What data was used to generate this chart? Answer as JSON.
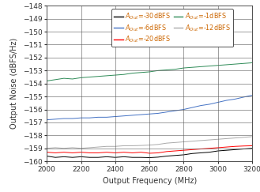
{
  "title": "",
  "xlabel": "Output Frequency (MHz)",
  "ylabel": "Output Noise (dBFS/Hz)",
  "xlim": [
    2000,
    3200
  ],
  "ylim": [
    -160,
    -148
  ],
  "yticks": [
    -160,
    -159,
    -158,
    -157,
    -156,
    -155,
    -154,
    -153,
    -152,
    -151,
    -150,
    -149,
    -148
  ],
  "xticks": [
    2000,
    2200,
    2400,
    2600,
    2800,
    3000,
    3200
  ],
  "series": [
    {
      "label": "=-30dBFS",
      "color": "#000000",
      "x": [
        2000,
        2050,
        2100,
        2150,
        2200,
        2250,
        2300,
        2350,
        2400,
        2450,
        2500,
        2550,
        2600,
        2650,
        2700,
        2750,
        2800,
        2850,
        2900,
        2950,
        3000,
        3050,
        3100,
        3150,
        3200
      ],
      "y": [
        -159.6,
        -159.7,
        -159.65,
        -159.7,
        -159.65,
        -159.7,
        -159.7,
        -159.65,
        -159.7,
        -159.65,
        -159.7,
        -159.7,
        -159.72,
        -159.68,
        -159.6,
        -159.55,
        -159.5,
        -159.4,
        -159.35,
        -159.3,
        -159.2,
        -159.15,
        -159.1,
        -159.05,
        -159.0
      ]
    },
    {
      "label": "=-20dBFS",
      "color": "#ff0000",
      "x": [
        2000,
        2050,
        2100,
        2150,
        2200,
        2250,
        2300,
        2350,
        2400,
        2450,
        2500,
        2550,
        2600,
        2650,
        2700,
        2750,
        2800,
        2850,
        2900,
        2950,
        3000,
        3050,
        3100,
        3150,
        3200
      ],
      "y": [
        -159.3,
        -159.35,
        -159.3,
        -159.35,
        -159.3,
        -159.35,
        -159.35,
        -159.3,
        -159.35,
        -159.3,
        -159.35,
        -159.3,
        -159.38,
        -159.35,
        -159.25,
        -159.2,
        -159.15,
        -159.1,
        -159.05,
        -159.0,
        -158.95,
        -158.9,
        -158.85,
        -158.82,
        -158.8
      ]
    },
    {
      "label": "=-12dBFS",
      "color": "#aaaaaa",
      "x": [
        2000,
        2050,
        2100,
        2150,
        2200,
        2250,
        2300,
        2350,
        2400,
        2450,
        2500,
        2550,
        2600,
        2650,
        2700,
        2750,
        2800,
        2850,
        2900,
        2950,
        3000,
        3050,
        3100,
        3150,
        3200
      ],
      "y": [
        -159.0,
        -158.95,
        -159.0,
        -158.95,
        -159.0,
        -158.95,
        -158.9,
        -158.85,
        -158.85,
        -158.8,
        -158.8,
        -158.78,
        -158.75,
        -158.7,
        -158.6,
        -158.55,
        -158.5,
        -158.45,
        -158.4,
        -158.35,
        -158.3,
        -158.25,
        -158.2,
        -158.15,
        -158.1
      ]
    },
    {
      "label": "=-6dBFS",
      "color": "#4472c4",
      "x": [
        2000,
        2050,
        2100,
        2150,
        2200,
        2250,
        2300,
        2350,
        2400,
        2450,
        2500,
        2550,
        2600,
        2650,
        2700,
        2750,
        2800,
        2850,
        2900,
        2950,
        3000,
        3050,
        3100,
        3150,
        3200
      ],
      "y": [
        -156.8,
        -156.75,
        -156.7,
        -156.7,
        -156.65,
        -156.65,
        -156.6,
        -156.6,
        -156.55,
        -156.5,
        -156.45,
        -156.4,
        -156.35,
        -156.3,
        -156.2,
        -156.1,
        -156.0,
        -155.85,
        -155.7,
        -155.6,
        -155.45,
        -155.3,
        -155.2,
        -155.05,
        -154.9
      ]
    },
    {
      "label": "=-1dBFS",
      "color": "#2e8b57",
      "x": [
        2000,
        2050,
        2100,
        2150,
        2200,
        2250,
        2300,
        2350,
        2400,
        2450,
        2500,
        2550,
        2600,
        2650,
        2700,
        2750,
        2800,
        2850,
        2900,
        2950,
        3000,
        3050,
        3100,
        3150,
        3200
      ],
      "y": [
        -153.8,
        -153.7,
        -153.6,
        -153.65,
        -153.55,
        -153.5,
        -153.45,
        -153.4,
        -153.35,
        -153.3,
        -153.2,
        -153.15,
        -153.1,
        -153.0,
        -152.95,
        -152.9,
        -152.8,
        -152.75,
        -152.7,
        -152.65,
        -152.6,
        -152.55,
        -152.5,
        -152.45,
        -152.4
      ]
    }
  ],
  "legend_order": [
    {
      "label": "=-30dBFS",
      "color": "#000000"
    },
    {
      "label": "=-6dBFS",
      "color": "#4472c4"
    },
    {
      "label": "=-20dBFS",
      "color": "#ff0000"
    },
    {
      "label": "=-1dBFS",
      "color": "#2e8b57"
    },
    {
      "label": "=-12dBFS",
      "color": "#aaaaaa"
    }
  ],
  "text_color": "#cc6600",
  "legend_fontsize": 5.8,
  "tick_fontsize": 6.5,
  "label_fontsize": 7,
  "background_color": "#ffffff"
}
